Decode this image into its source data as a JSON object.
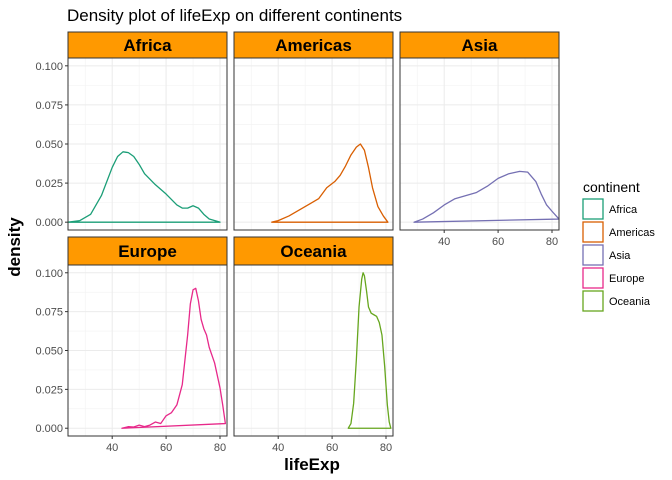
{
  "chart_data": {
    "type": "line",
    "title": "Density plot of lifeExp on different continents",
    "xlabel": "lifeExp",
    "ylabel": "density",
    "xlim": [
      23.6,
      82.6
    ],
    "ylim": [
      0,
      0.1
    ],
    "x_ticks": [
      40,
      60,
      80
    ],
    "y_ticks": [
      0,
      0.025,
      0.05,
      0.075,
      0.1
    ],
    "y_tick_labels": [
      "0.000",
      "0.025",
      "0.050",
      "0.075",
      "0.100"
    ],
    "grid": true,
    "legend": {
      "title": "continent",
      "placement": "right"
    },
    "strip_color": "#FF9900",
    "facets": [
      {
        "name": "Africa",
        "color": "#1B9E77",
        "x": [
          23.6,
          28,
          32,
          36,
          40,
          42,
          44,
          46,
          48,
          50,
          52,
          56,
          60,
          64,
          66,
          68,
          70,
          72,
          74,
          76,
          80,
          76.4
        ],
        "y": [
          0.0,
          0.001,
          0.005,
          0.017,
          0.035,
          0.042,
          0.045,
          0.0445,
          0.042,
          0.037,
          0.031,
          0.024,
          0.018,
          0.011,
          0.009,
          0.009,
          0.0105,
          0.009,
          0.005,
          0.002,
          0.0,
          0.0
        ]
      },
      {
        "name": "Americas",
        "color": "#D95F02",
        "x": [
          37.6,
          40,
          44,
          48,
          52,
          55,
          58,
          61,
          63,
          65,
          67,
          69,
          70.5,
          72,
          73.5,
          75,
          77,
          79,
          80.7
        ],
        "y": [
          0.0,
          0.001,
          0.004,
          0.008,
          0.012,
          0.015,
          0.022,
          0.026,
          0.03,
          0.036,
          0.043,
          0.048,
          0.05,
          0.046,
          0.035,
          0.022,
          0.01,
          0.004,
          0.0
        ]
      },
      {
        "name": "Asia",
        "color": "#7570B3",
        "x": [
          28.8,
          32,
          36,
          40,
          44,
          48,
          52,
          56,
          60,
          64,
          68,
          71,
          74,
          76,
          78,
          80,
          82.6
        ],
        "y": [
          0.0,
          0.002,
          0.006,
          0.011,
          0.015,
          0.017,
          0.019,
          0.023,
          0.028,
          0.031,
          0.0325,
          0.032,
          0.026,
          0.018,
          0.011,
          0.007,
          0.002
        ]
      },
      {
        "name": "Europe",
        "color": "#E7298A",
        "x": [
          43.6,
          46,
          48,
          50,
          52,
          54,
          56,
          58,
          60,
          62,
          64,
          66,
          68,
          69,
          70,
          71,
          72,
          73,
          74,
          75,
          76,
          78,
          80,
          81,
          82
        ],
        "y": [
          0.0,
          0.001,
          0.0008,
          0.002,
          0.001,
          0.002,
          0.004,
          0.003,
          0.008,
          0.01,
          0.015,
          0.028,
          0.06,
          0.08,
          0.089,
          0.09,
          0.082,
          0.07,
          0.064,
          0.06,
          0.052,
          0.042,
          0.026,
          0.015,
          0.003
        ]
      },
      {
        "name": "Oceania",
        "color": "#66A61E",
        "x": [
          66,
          67,
          68,
          69,
          70,
          71,
          71.5,
          72,
          72.8,
          73.5,
          74.5,
          75.5,
          76.5,
          77.5,
          78.5,
          79.5,
          80.5,
          81.2,
          81.8
        ],
        "y": [
          0.0,
          0.003,
          0.016,
          0.044,
          0.078,
          0.096,
          0.1,
          0.098,
          0.088,
          0.078,
          0.074,
          0.073,
          0.072,
          0.068,
          0.06,
          0.04,
          0.015,
          0.004,
          0.0
        ]
      }
    ]
  }
}
